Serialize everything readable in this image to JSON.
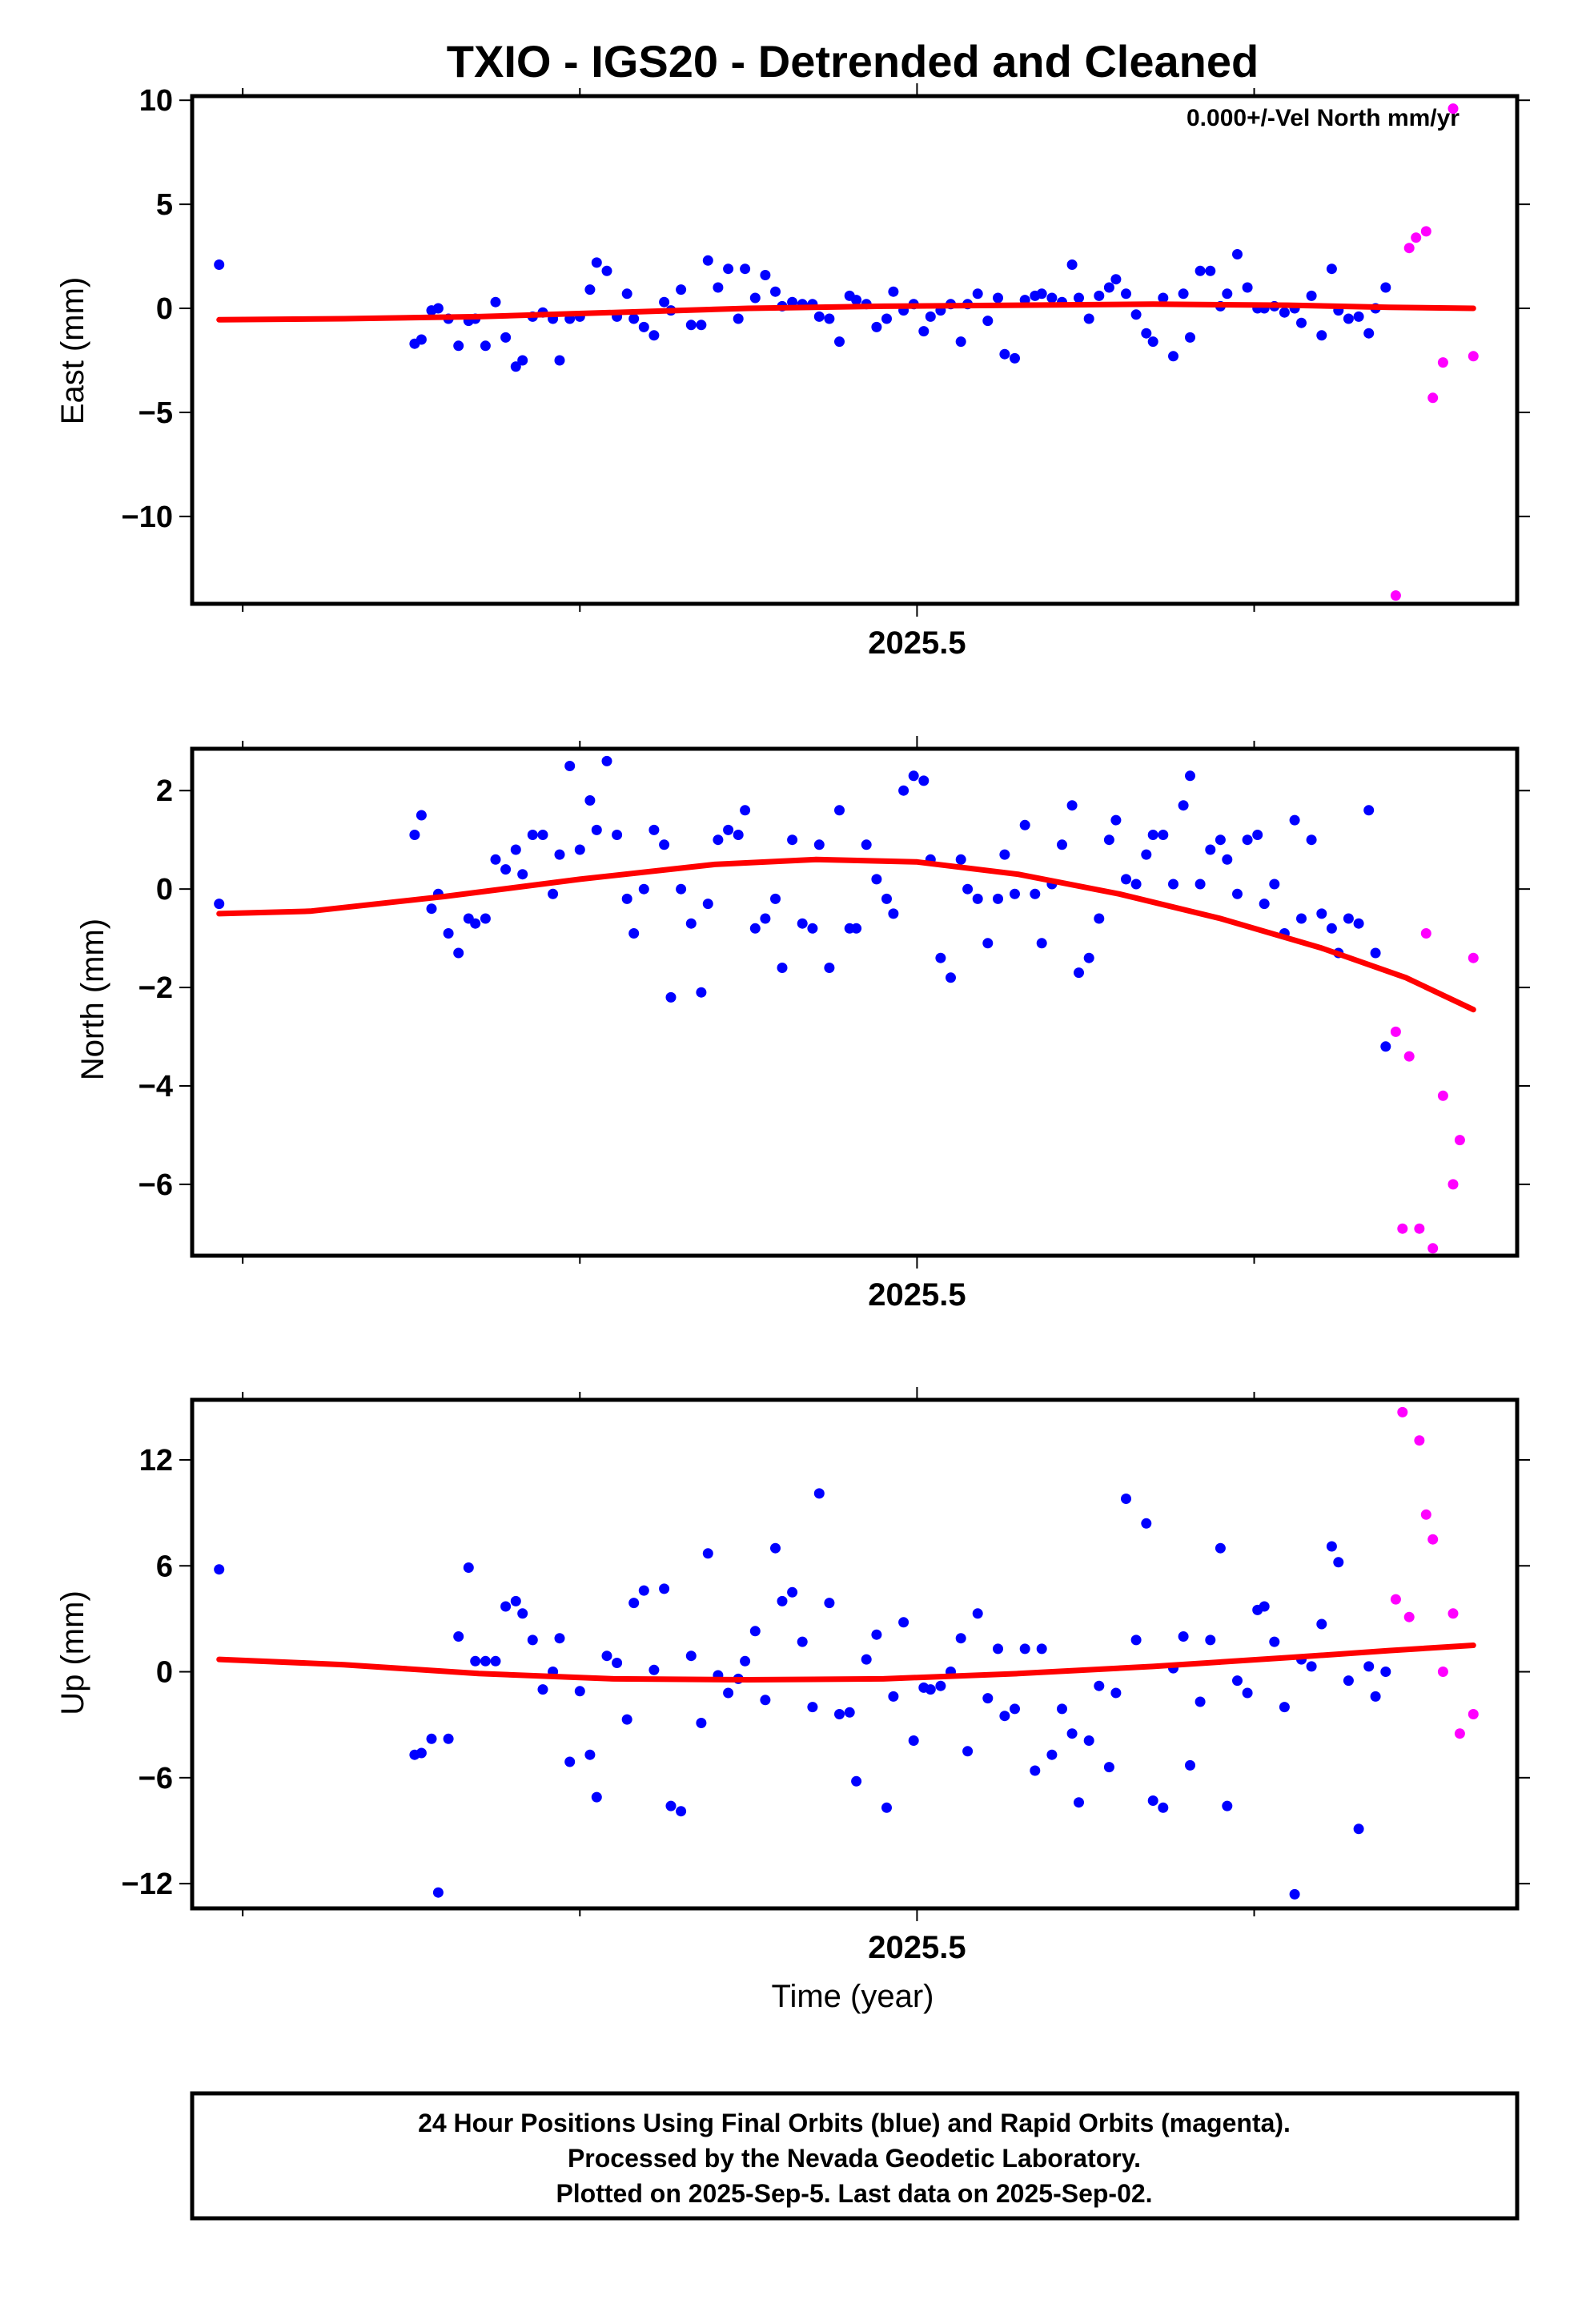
{
  "title": "TXIO - IGS20 - Detrended and Cleaned",
  "xlabel": "Time (year)",
  "footer": [
    "24 Hour Positions Using Final Orbits (blue) and Rapid Orbits (magenta).",
    "Processed by the Nevada Geodetic Laboratory.",
    "Plotted on 2025-Sep-5. Last data on 2025-Sep-02."
  ],
  "colors": {
    "final": "#0000ff",
    "rapid": "#ff00ff",
    "model": "#ff0000",
    "frame": "#000000"
  },
  "chart_data": [
    {
      "type": "scatter",
      "ylabel": "East (mm)",
      "annotation": "0.000+/-Vel North mm/yr",
      "xlim": [
        2025.285,
        2025.678
      ],
      "ylim": [
        -14.2,
        10.2
      ],
      "yticks": [
        10,
        5,
        0,
        -5,
        -10
      ],
      "ytick_labels": [
        "10",
        "5",
        "0",
        "−5",
        "−10"
      ],
      "xticks_labeled": [
        2025.5
      ],
      "xtick_labels": [
        "2025.5"
      ],
      "xticks_minor": [
        2025.3,
        2025.4,
        2025.6
      ],
      "series": [
        {
          "name": "Final Orbits",
          "color": "#0000ff",
          "x": [
            2025.293,
            2025.351,
            2025.353,
            2025.356,
            2025.358,
            2025.361,
            2025.364,
            2025.367,
            2025.369,
            2025.372,
            2025.375,
            2025.378,
            2025.381,
            2025.383,
            2025.386,
            2025.389,
            2025.392,
            2025.394,
            2025.397,
            2025.4,
            2025.403,
            2025.405,
            2025.408,
            2025.411,
            2025.414,
            2025.416,
            2025.419,
            2025.422,
            2025.425,
            2025.427,
            2025.43,
            2025.433,
            2025.436,
            2025.438,
            2025.441,
            2025.444,
            2025.447,
            2025.449,
            2025.452,
            2025.455,
            2025.458,
            2025.46,
            2025.463,
            2025.466,
            2025.469,
            2025.471,
            2025.474,
            2025.477,
            2025.48,
            2025.482,
            2025.485,
            2025.488,
            2025.491,
            2025.493,
            2025.496,
            2025.499,
            2025.502,
            2025.504,
            2025.507,
            2025.51,
            2025.513,
            2025.515,
            2025.518,
            2025.521,
            2025.524,
            2025.526,
            2025.529,
            2025.532,
            2025.535,
            2025.537,
            2025.54,
            2025.543,
            2025.546,
            2025.548,
            2025.551,
            2025.554,
            2025.557,
            2025.559,
            2025.562,
            2025.565,
            2025.568,
            2025.57,
            2025.573,
            2025.576,
            2025.579,
            2025.581,
            2025.584,
            2025.587,
            2025.59,
            2025.592,
            2025.595,
            2025.598,
            2025.601,
            2025.603,
            2025.606,
            2025.609,
            2025.612,
            2025.614,
            2025.617,
            2025.62,
            2025.623,
            2025.625,
            2025.628,
            2025.631,
            2025.634,
            2025.636,
            2025.639
          ],
          "y": [
            2.1,
            -1.7,
            -1.5,
            -0.1,
            0.0,
            -0.5,
            -1.8,
            -0.6,
            -0.5,
            -1.8,
            0.3,
            -1.4,
            -2.8,
            -2.5,
            -0.4,
            -0.2,
            -0.5,
            -2.5,
            -0.5,
            -0.4,
            0.9,
            2.2,
            1.8,
            -0.4,
            0.7,
            -0.5,
            -0.9,
            -1.3,
            0.3,
            -0.1,
            0.9,
            -0.8,
            -0.8,
            2.3,
            1.0,
            1.9,
            -0.5,
            1.9,
            0.5,
            1.6,
            0.8,
            0.1,
            0.3,
            0.2,
            0.2,
            -0.4,
            -0.5,
            -1.6,
            0.6,
            0.4,
            0.2,
            -0.9,
            -0.5,
            0.8,
            -0.1,
            0.2,
            -1.1,
            -0.4,
            -0.1,
            0.2,
            -1.6,
            0.2,
            0.7,
            -0.6,
            0.5,
            -2.2,
            -2.4,
            0.4,
            0.6,
            0.7,
            0.5,
            0.3,
            2.1,
            0.5,
            -0.5,
            0.6,
            1.0,
            1.4,
            0.7,
            -0.3,
            -1.2,
            -1.6,
            0.5,
            -2.3,
            0.7,
            -1.4,
            1.8,
            1.8,
            0.1,
            0.7,
            2.6,
            1.0,
            0.0,
            0.0,
            0.1,
            -0.2,
            0.0,
            -0.7,
            0.6,
            -1.3,
            1.9,
            -0.1,
            -0.5,
            -0.4,
            -1.2,
            0.0,
            1.0
          ]
        },
        {
          "name": "Rapid Orbits",
          "color": "#ff00ff",
          "x": [
            2025.642,
            2025.646,
            2025.648,
            2025.651,
            2025.653,
            2025.656,
            2025.659,
            2025.665
          ],
          "y": [
            -13.8,
            2.9,
            3.4,
            3.7,
            -4.3,
            -2.6,
            9.6,
            -2.3
          ]
        },
        {
          "name": "Model",
          "color": "#ff0000",
          "line": true,
          "x": [
            2025.293,
            2025.33,
            2025.37,
            2025.41,
            2025.45,
            2025.49,
            2025.53,
            2025.57,
            2025.61,
            2025.64,
            2025.665
          ],
          "y": [
            -0.55,
            -0.5,
            -0.4,
            -0.2,
            0.0,
            0.1,
            0.15,
            0.2,
            0.15,
            0.05,
            0.0
          ]
        }
      ]
    },
    {
      "type": "scatter",
      "ylabel": "North (mm)",
      "xlim": [
        2025.285,
        2025.678
      ],
      "ylim": [
        -7.45,
        2.85
      ],
      "yticks": [
        2,
        0,
        -2,
        -4,
        -6
      ],
      "ytick_labels": [
        "2",
        "0",
        "−2",
        "−4",
        "−6"
      ],
      "xticks_labeled": [
        2025.5
      ],
      "xtick_labels": [
        "2025.5"
      ],
      "xticks_minor": [
        2025.3,
        2025.4,
        2025.6
      ],
      "series": [
        {
          "name": "Final Orbits",
          "color": "#0000ff",
          "x": [
            2025.293,
            2025.351,
            2025.353,
            2025.356,
            2025.358,
            2025.361,
            2025.364,
            2025.367,
            2025.369,
            2025.372,
            2025.375,
            2025.378,
            2025.381,
            2025.383,
            2025.386,
            2025.389,
            2025.392,
            2025.394,
            2025.397,
            2025.4,
            2025.403,
            2025.405,
            2025.408,
            2025.411,
            2025.414,
            2025.416,
            2025.419,
            2025.422,
            2025.425,
            2025.427,
            2025.43,
            2025.433,
            2025.436,
            2025.438,
            2025.441,
            2025.444,
            2025.447,
            2025.449,
            2025.452,
            2025.455,
            2025.458,
            2025.46,
            2025.463,
            2025.466,
            2025.469,
            2025.471,
            2025.474,
            2025.477,
            2025.48,
            2025.482,
            2025.485,
            2025.488,
            2025.491,
            2025.493,
            2025.496,
            2025.499,
            2025.502,
            2025.504,
            2025.507,
            2025.51,
            2025.513,
            2025.515,
            2025.518,
            2025.521,
            2025.524,
            2025.526,
            2025.529,
            2025.532,
            2025.535,
            2025.537,
            2025.54,
            2025.543,
            2025.546,
            2025.548,
            2025.551,
            2025.554,
            2025.557,
            2025.559,
            2025.562,
            2025.565,
            2025.568,
            2025.57,
            2025.573,
            2025.576,
            2025.579,
            2025.581,
            2025.584,
            2025.587,
            2025.59,
            2025.592,
            2025.595,
            2025.598,
            2025.601,
            2025.603,
            2025.606,
            2025.609,
            2025.612,
            2025.614,
            2025.617,
            2025.62,
            2025.623,
            2025.625,
            2025.628,
            2025.631,
            2025.634,
            2025.636,
            2025.639
          ],
          "y": [
            -0.3,
            1.1,
            1.5,
            -0.4,
            -0.1,
            -0.9,
            -1.3,
            -0.6,
            -0.7,
            -0.6,
            0.6,
            0.4,
            0.8,
            0.3,
            1.1,
            1.1,
            -0.1,
            0.7,
            2.5,
            0.8,
            1.8,
            1.2,
            2.6,
            1.1,
            -0.2,
            -0.9,
            0.0,
            1.2,
            0.9,
            -2.2,
            0.0,
            -0.7,
            -2.1,
            -0.3,
            1.0,
            1.2,
            1.1,
            1.6,
            -0.8,
            -0.6,
            -0.2,
            -1.6,
            1.0,
            -0.7,
            -0.8,
            0.9,
            -1.6,
            1.6,
            -0.8,
            -0.8,
            0.9,
            0.2,
            -0.2,
            -0.5,
            2.0,
            2.3,
            2.2,
            0.6,
            -1.4,
            -1.8,
            0.6,
            0.0,
            -0.2,
            -1.1,
            -0.2,
            0.7,
            -0.1,
            1.3,
            -0.1,
            -1.1,
            0.1,
            0.9,
            1.7,
            -1.7,
            -1.4,
            -0.6,
            1.0,
            1.4,
            0.2,
            0.1,
            0.7,
            1.1,
            1.1,
            0.1,
            1.7,
            2.3,
            0.1,
            0.8,
            1.0,
            0.6,
            -0.1,
            1.0,
            1.1,
            -0.3,
            0.1,
            -0.9,
            1.4,
            -0.6,
            1.0,
            -0.5,
            -0.8,
            -1.3,
            -0.6,
            -0.7,
            1.6,
            -1.3,
            -3.2
          ]
        },
        {
          "name": "Rapid Orbits",
          "color": "#ff00ff",
          "x": [
            2025.642,
            2025.644,
            2025.646,
            2025.649,
            2025.651,
            2025.653,
            2025.656,
            2025.659,
            2025.661,
            2025.665
          ],
          "y": [
            -2.9,
            -6.9,
            -3.4,
            -6.9,
            -0.9,
            -7.3,
            -4.2,
            -6.0,
            -5.1,
            -1.4
          ]
        },
        {
          "name": "Model",
          "color": "#ff0000",
          "line": true,
          "x": [
            2025.293,
            2025.32,
            2025.36,
            2025.4,
            2025.44,
            2025.47,
            2025.5,
            2025.53,
            2025.56,
            2025.59,
            2025.62,
            2025.645,
            2025.665
          ],
          "y": [
            -0.5,
            -0.45,
            -0.15,
            0.2,
            0.5,
            0.6,
            0.55,
            0.3,
            -0.1,
            -0.6,
            -1.2,
            -1.8,
            -2.45
          ]
        }
      ]
    },
    {
      "type": "scatter",
      "ylabel": "Up (mm)",
      "xlim": [
        2025.285,
        2025.678
      ],
      "ylim": [
        -13.4,
        15.4
      ],
      "yticks": [
        12,
        6,
        0,
        -6,
        -12
      ],
      "ytick_labels": [
        "12",
        "6",
        "0",
        "−6",
        "−12"
      ],
      "xticks_labeled": [
        2025.5
      ],
      "xtick_labels": [
        "2025.5"
      ],
      "xticks_minor": [
        2025.3,
        2025.4,
        2025.6
      ],
      "series": [
        {
          "name": "Final Orbits",
          "color": "#0000ff",
          "x": [
            2025.293,
            2025.351,
            2025.353,
            2025.356,
            2025.358,
            2025.361,
            2025.364,
            2025.367,
            2025.369,
            2025.372,
            2025.375,
            2025.378,
            2025.381,
            2025.383,
            2025.386,
            2025.389,
            2025.392,
            2025.394,
            2025.397,
            2025.4,
            2025.403,
            2025.405,
            2025.408,
            2025.411,
            2025.414,
            2025.416,
            2025.419,
            2025.422,
            2025.425,
            2025.427,
            2025.43,
            2025.433,
            2025.436,
            2025.438,
            2025.441,
            2025.444,
            2025.447,
            2025.449,
            2025.452,
            2025.455,
            2025.458,
            2025.46,
            2025.463,
            2025.466,
            2025.469,
            2025.471,
            2025.474,
            2025.477,
            2025.48,
            2025.482,
            2025.485,
            2025.488,
            2025.491,
            2025.493,
            2025.496,
            2025.499,
            2025.502,
            2025.504,
            2025.507,
            2025.51,
            2025.513,
            2025.515,
            2025.518,
            2025.521,
            2025.524,
            2025.526,
            2025.529,
            2025.532,
            2025.535,
            2025.537,
            2025.54,
            2025.543,
            2025.546,
            2025.548,
            2025.551,
            2025.554,
            2025.557,
            2025.559,
            2025.562,
            2025.565,
            2025.568,
            2025.57,
            2025.573,
            2025.576,
            2025.579,
            2025.581,
            2025.584,
            2025.587,
            2025.59,
            2025.592,
            2025.595,
            2025.598,
            2025.601,
            2025.603,
            2025.606,
            2025.609,
            2025.612,
            2025.614,
            2025.617,
            2025.62,
            2025.623,
            2025.625,
            2025.628,
            2025.631,
            2025.634,
            2025.636,
            2025.639
          ],
          "y": [
            5.8,
            -4.7,
            -4.6,
            -3.8,
            -12.5,
            -3.8,
            2.0,
            5.9,
            0.6,
            0.6,
            0.6,
            3.7,
            4.0,
            3.3,
            1.8,
            -1.0,
            0.0,
            1.9,
            -5.1,
            -1.1,
            -4.7,
            -7.1,
            0.9,
            0.5,
            -2.7,
            3.9,
            4.6,
            0.1,
            4.7,
            -7.6,
            -7.9,
            0.9,
            -2.9,
            6.7,
            -0.2,
            -1.2,
            -0.4,
            0.6,
            2.3,
            -1.6,
            7.0,
            4.0,
            4.5,
            1.7,
            -2.0,
            10.1,
            3.9,
            -2.4,
            -2.3,
            -6.2,
            0.7,
            2.1,
            -7.7,
            -1.4,
            2.8,
            -3.9,
            -0.9,
            -1.0,
            -0.8,
            0.0,
            1.9,
            -4.5,
            3.3,
            -1.5,
            1.3,
            -2.5,
            -2.1,
            1.3,
            -5.6,
            1.3,
            -4.7,
            -2.1,
            -3.5,
            -7.4,
            -3.9,
            -0.8,
            -5.4,
            -1.2,
            9.8,
            1.8,
            8.4,
            -7.3,
            -7.7,
            0.2,
            2.0,
            -5.3,
            -1.7,
            1.8,
            7.0,
            -7.6,
            -0.5,
            -1.2,
            3.5,
            3.7,
            1.7,
            -2.0,
            -12.6,
            0.7,
            0.3,
            2.7,
            7.1,
            6.2,
            -0.5,
            -8.9,
            0.3,
            -1.4,
            0.0
          ]
        },
        {
          "name": "Rapid Orbits",
          "color": "#ff00ff",
          "x": [
            2025.642,
            2025.644,
            2025.646,
            2025.649,
            2025.651,
            2025.653,
            2025.656,
            2025.659,
            2025.661,
            2025.665
          ],
          "y": [
            4.1,
            14.7,
            3.1,
            13.1,
            8.9,
            7.5,
            0.0,
            3.3,
            -3.5,
            -2.4
          ]
        },
        {
          "name": "Model",
          "color": "#ff0000",
          "line": true,
          "x": [
            2025.293,
            2025.33,
            2025.37,
            2025.41,
            2025.45,
            2025.49,
            2025.53,
            2025.57,
            2025.61,
            2025.64,
            2025.665
          ],
          "y": [
            0.7,
            0.4,
            -0.1,
            -0.4,
            -0.45,
            -0.4,
            -0.1,
            0.3,
            0.8,
            1.2,
            1.5
          ]
        }
      ]
    }
  ]
}
